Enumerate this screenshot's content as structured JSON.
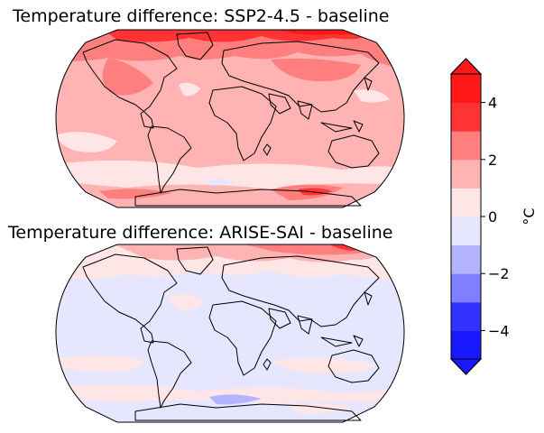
{
  "panels": [
    {
      "title": "Temperature difference: SSP2-4.5 - baseline"
    },
    {
      "title": "Temperature difference: ARISE-SAI - baseline"
    }
  ],
  "colorbar": {
    "unit": "°C",
    "ticks": [
      "4",
      "2",
      "0",
      "−2",
      "−4"
    ],
    "levels": [
      -5,
      -4,
      -3,
      -2,
      -1,
      0,
      1,
      2,
      3,
      4,
      5
    ],
    "colors": [
      "#1919ff",
      "#3333ff",
      "#7f7fff",
      "#b3b3ff",
      "#e6e6ff",
      "#ffe6e6",
      "#ffb3b3",
      "#ff7f7f",
      "#ff3333",
      "#ff1919"
    ],
    "extend": "both"
  },
  "palette": {
    "strong_red": "#ff1f1f",
    "red": "#ff7f7f",
    "light_red": "#ffb3b3",
    "pale_red": "#ffe6e6",
    "pale_blue": "#e6e6ff",
    "light_blue": "#b3b3ff"
  }
}
